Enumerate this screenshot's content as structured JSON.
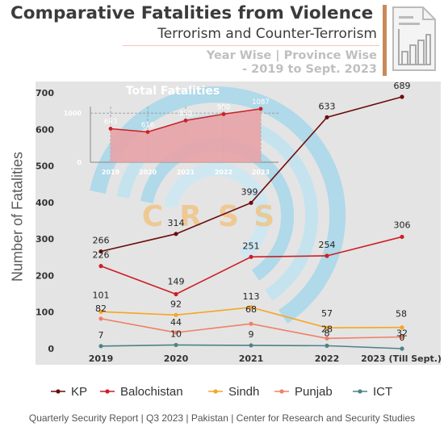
{
  "header": {
    "title": "Comparative Fatalities from Violence",
    "subtitle": "Terrorism and Counter-Terrorism",
    "meta_line1": "Year Wise | Province Wise",
    "meta_line2": "- 2019 to Sept. 2023"
  },
  "watermark": "CRSS",
  "footer": "Quarterly Security Report | Q3 2023 | Pakistan | Center for Research and Security Studies",
  "chart_data": [
    {
      "type": "line",
      "title": "",
      "ylabel": "Number of Fatalities",
      "categories": [
        "2019",
        "2020",
        "2021",
        "2022",
        "2023 (Till Sept.)"
      ],
      "yticks": [
        0,
        100,
        200,
        300,
        400,
        500,
        600,
        700
      ],
      "ylim": [
        0,
        700
      ],
      "grid": false,
      "legend_position": "bottom",
      "series": [
        {
          "name": "KP",
          "color": "#6b0d0d",
          "values": [
            266,
            314,
            399,
            633,
            689
          ]
        },
        {
          "name": "Balochistan",
          "color": "#cc1f25",
          "values": [
            226,
            149,
            251,
            254,
            306
          ]
        },
        {
          "name": "Sindh",
          "color": "#f5a623",
          "values": [
            101,
            92,
            113,
            57,
            58
          ]
        },
        {
          "name": "Punjab",
          "color": "#f08066",
          "values": [
            82,
            44,
            68,
            28,
            32
          ]
        },
        {
          "name": "ICT",
          "color": "#4e8287",
          "values": [
            7,
            10,
            9,
            8,
            0
          ]
        }
      ]
    },
    {
      "type": "area",
      "title": "Total Fatalities",
      "categories": [
        "2019",
        "2020",
        "2021",
        "2022",
        "2023"
      ],
      "values": [
        683,
        616,
        850,
        980,
        1087
      ],
      "yticks": [
        0,
        1000
      ],
      "ylim": [
        0,
        1200
      ],
      "color": "#cc1f25"
    }
  ]
}
